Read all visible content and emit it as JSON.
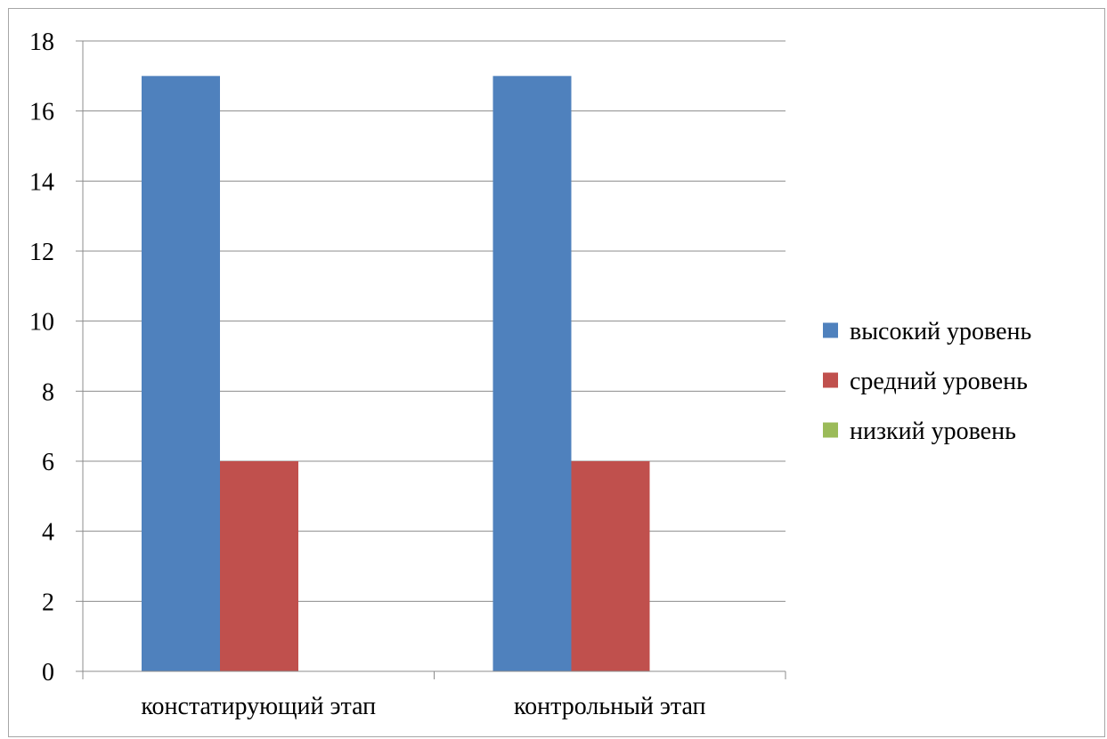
{
  "chart_data": {
    "type": "bar",
    "title": "",
    "xlabel": "",
    "ylabel": "",
    "categories": [
      "констатирующий этап",
      "контрольный этап"
    ],
    "series": [
      {
        "name": "высокий уровень",
        "values": [
          17,
          17
        ],
        "color": "#4F81BD"
      },
      {
        "name": "средний уровень",
        "values": [
          6,
          6
        ],
        "color": "#C0504D"
      },
      {
        "name": "низкий уровень",
        "values": [
          0,
          0
        ],
        "color": "#9BBB59"
      }
    ],
    "ylim": [
      0,
      18
    ],
    "yticks": [
      "0",
      "2",
      "4",
      "6",
      "8",
      "10",
      "12",
      "14",
      "16",
      "18"
    ],
    "grid": true,
    "legend_position": "right"
  }
}
